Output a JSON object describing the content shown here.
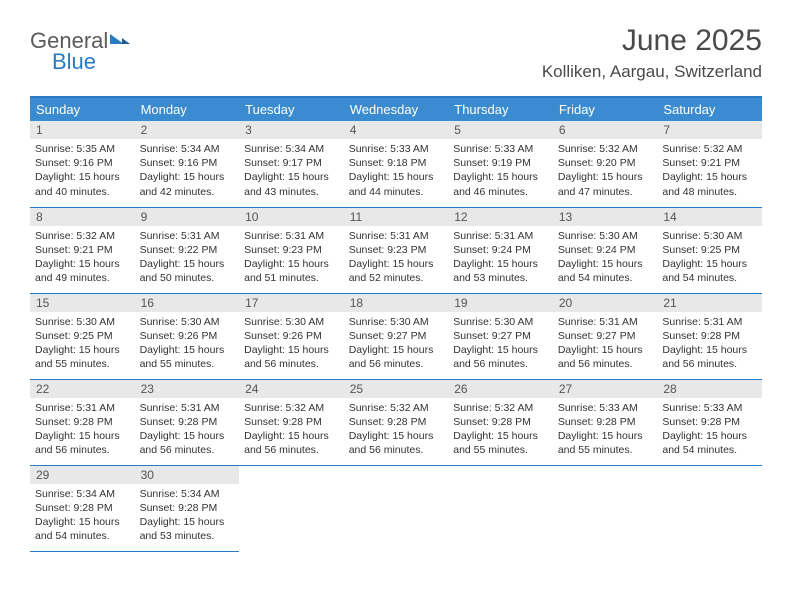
{
  "logo": {
    "line1": "General",
    "line2": "Blue"
  },
  "title": "June 2025",
  "location": "Kolliken, Aargau, Switzerland",
  "colors": {
    "header_bg": "#3b8bd0",
    "border": "#2a7cc2",
    "daynum_bg": "#e8e8e8",
    "text": "#333333",
    "logo_blue": "#2a7cc2",
    "logo_gray": "#5b5b5b"
  },
  "weekdays": [
    "Sunday",
    "Monday",
    "Tuesday",
    "Wednesday",
    "Thursday",
    "Friday",
    "Saturday"
  ],
  "days": [
    {
      "n": 1,
      "sr": "5:35 AM",
      "ss": "9:16 PM",
      "dl": "15 hours and 40 minutes."
    },
    {
      "n": 2,
      "sr": "5:34 AM",
      "ss": "9:16 PM",
      "dl": "15 hours and 42 minutes."
    },
    {
      "n": 3,
      "sr": "5:34 AM",
      "ss": "9:17 PM",
      "dl": "15 hours and 43 minutes."
    },
    {
      "n": 4,
      "sr": "5:33 AM",
      "ss": "9:18 PM",
      "dl": "15 hours and 44 minutes."
    },
    {
      "n": 5,
      "sr": "5:33 AM",
      "ss": "9:19 PM",
      "dl": "15 hours and 46 minutes."
    },
    {
      "n": 6,
      "sr": "5:32 AM",
      "ss": "9:20 PM",
      "dl": "15 hours and 47 minutes."
    },
    {
      "n": 7,
      "sr": "5:32 AM",
      "ss": "9:21 PM",
      "dl": "15 hours and 48 minutes."
    },
    {
      "n": 8,
      "sr": "5:32 AM",
      "ss": "9:21 PM",
      "dl": "15 hours and 49 minutes."
    },
    {
      "n": 9,
      "sr": "5:31 AM",
      "ss": "9:22 PM",
      "dl": "15 hours and 50 minutes."
    },
    {
      "n": 10,
      "sr": "5:31 AM",
      "ss": "9:23 PM",
      "dl": "15 hours and 51 minutes."
    },
    {
      "n": 11,
      "sr": "5:31 AM",
      "ss": "9:23 PM",
      "dl": "15 hours and 52 minutes."
    },
    {
      "n": 12,
      "sr": "5:31 AM",
      "ss": "9:24 PM",
      "dl": "15 hours and 53 minutes."
    },
    {
      "n": 13,
      "sr": "5:30 AM",
      "ss": "9:24 PM",
      "dl": "15 hours and 54 minutes."
    },
    {
      "n": 14,
      "sr": "5:30 AM",
      "ss": "9:25 PM",
      "dl": "15 hours and 54 minutes."
    },
    {
      "n": 15,
      "sr": "5:30 AM",
      "ss": "9:25 PM",
      "dl": "15 hours and 55 minutes."
    },
    {
      "n": 16,
      "sr": "5:30 AM",
      "ss": "9:26 PM",
      "dl": "15 hours and 55 minutes."
    },
    {
      "n": 17,
      "sr": "5:30 AM",
      "ss": "9:26 PM",
      "dl": "15 hours and 56 minutes."
    },
    {
      "n": 18,
      "sr": "5:30 AM",
      "ss": "9:27 PM",
      "dl": "15 hours and 56 minutes."
    },
    {
      "n": 19,
      "sr": "5:30 AM",
      "ss": "9:27 PM",
      "dl": "15 hours and 56 minutes."
    },
    {
      "n": 20,
      "sr": "5:31 AM",
      "ss": "9:27 PM",
      "dl": "15 hours and 56 minutes."
    },
    {
      "n": 21,
      "sr": "5:31 AM",
      "ss": "9:28 PM",
      "dl": "15 hours and 56 minutes."
    },
    {
      "n": 22,
      "sr": "5:31 AM",
      "ss": "9:28 PM",
      "dl": "15 hours and 56 minutes."
    },
    {
      "n": 23,
      "sr": "5:31 AM",
      "ss": "9:28 PM",
      "dl": "15 hours and 56 minutes."
    },
    {
      "n": 24,
      "sr": "5:32 AM",
      "ss": "9:28 PM",
      "dl": "15 hours and 56 minutes."
    },
    {
      "n": 25,
      "sr": "5:32 AM",
      "ss": "9:28 PM",
      "dl": "15 hours and 56 minutes."
    },
    {
      "n": 26,
      "sr": "5:32 AM",
      "ss": "9:28 PM",
      "dl": "15 hours and 55 minutes."
    },
    {
      "n": 27,
      "sr": "5:33 AM",
      "ss": "9:28 PM",
      "dl": "15 hours and 55 minutes."
    },
    {
      "n": 28,
      "sr": "5:33 AM",
      "ss": "9:28 PM",
      "dl": "15 hours and 54 minutes."
    },
    {
      "n": 29,
      "sr": "5:34 AM",
      "ss": "9:28 PM",
      "dl": "15 hours and 54 minutes."
    },
    {
      "n": 30,
      "sr": "5:34 AM",
      "ss": "9:28 PM",
      "dl": "15 hours and 53 minutes."
    }
  ],
  "labels": {
    "sunrise": "Sunrise:",
    "sunset": "Sunset:",
    "daylight": "Daylight:"
  },
  "layout": {
    "first_weekday_index": 0,
    "cols": 7,
    "rows": 5,
    "cell_font_size": 10.5,
    "header_font_size": 13
  }
}
